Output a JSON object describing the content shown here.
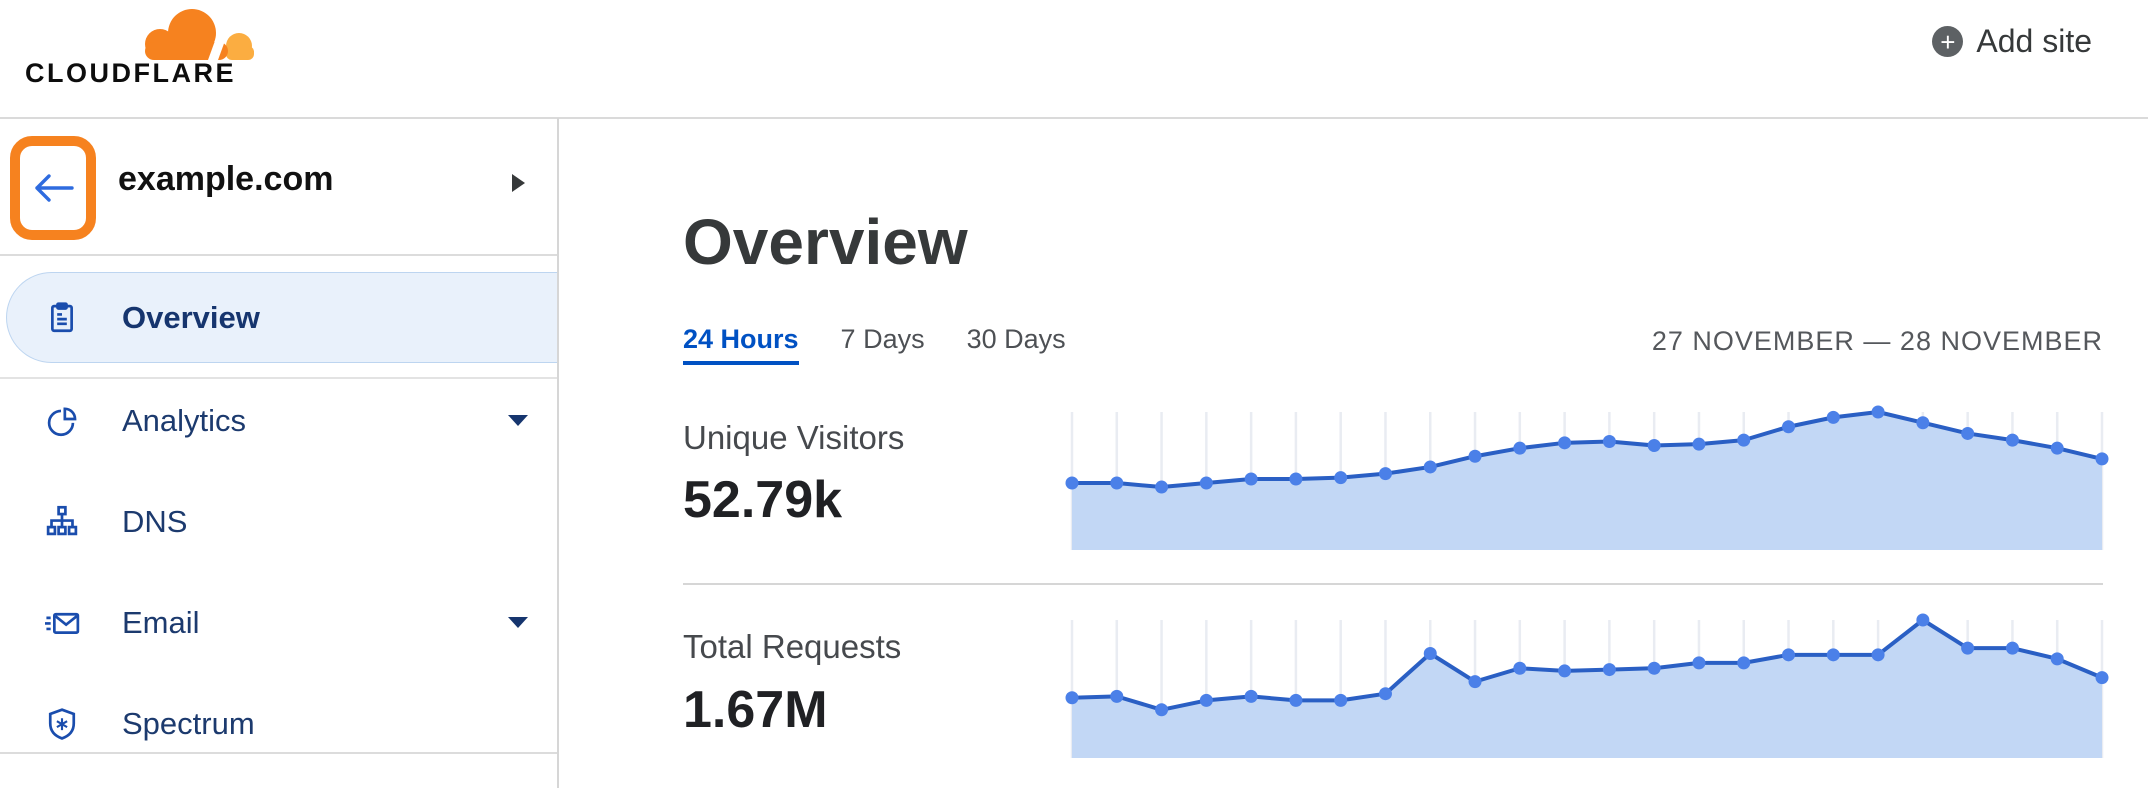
{
  "header": {
    "logo_text": "CLOUDFLARE",
    "add_site_label": "Add site"
  },
  "sidebar": {
    "site_name": "example.com",
    "items": [
      {
        "label": "Overview",
        "icon": "clipboard-icon",
        "selected": true,
        "has_submenu": false
      },
      {
        "label": "Analytics",
        "icon": "pie-chart-icon",
        "selected": false,
        "has_submenu": true
      },
      {
        "label": "DNS",
        "icon": "network-hierarchy-icon",
        "selected": false,
        "has_submenu": false
      },
      {
        "label": "Email",
        "icon": "envelope-icon",
        "selected": false,
        "has_submenu": true
      },
      {
        "label": "Spectrum",
        "icon": "shield-icon",
        "selected": false,
        "has_submenu": false
      }
    ],
    "annotation": {
      "type": "highlight-box",
      "color": "#f6821f",
      "target": "back-button"
    }
  },
  "main": {
    "title": "Overview",
    "tabs": [
      {
        "label": "24 Hours",
        "active": true
      },
      {
        "label": "7 Days",
        "active": false
      },
      {
        "label": "30 Days",
        "active": false
      }
    ],
    "date_range": "27 NOVEMBER — 28 NOVEMBER",
    "metrics": [
      {
        "label": "Unique Visitors",
        "value": "52.79k"
      },
      {
        "label": "Total Requests",
        "value": "1.67M"
      }
    ]
  },
  "colors": {
    "brand_orange": "#f6821f",
    "brand_orange_light": "#fbad41",
    "link_blue": "#0051c3",
    "nav_text": "#1c3a6e",
    "nav_icon_blue": "#1a4dad",
    "selected_pill_bg": "#e9f1fb",
    "selected_pill_border": "#bdd5f0",
    "chart_line": "#2a5fc4",
    "chart_dot": "#4b80e8",
    "chart_fill": "#c2d7f5",
    "chart_gridline": "#e9ecf2",
    "divider": "#d9d9d9",
    "text_dark": "#36393a",
    "text_gray": "#55585c"
  },
  "chart_data": [
    {
      "type": "area",
      "title": "Unique Visitors",
      "summary_value": "52.79k",
      "x_axis": "hourly points across 24 Hours view, 27–28 November (no tick labels shown)",
      "y_axis": "unlabeled; values below are relative heights as % of chart maximum",
      "grid": "vertical gridlines at each point",
      "legend_shown": false,
      "values": [
        47,
        47,
        44,
        47,
        50,
        50,
        51,
        54,
        59,
        67,
        73,
        77,
        78,
        75,
        76,
        79,
        89,
        96,
        100,
        92,
        84,
        79,
        73,
        65
      ]
    },
    {
      "type": "area",
      "title": "Total Requests",
      "summary_value": "1.67M",
      "x_axis": "hourly points across 24 Hours view, 27–28 November (no tick labels shown)",
      "y_axis": "unlabeled; values below are relative heights as % of chart maximum",
      "grid": "vertical gridlines at each point",
      "legend_shown": false,
      "values": [
        42,
        43,
        33,
        40,
        43,
        40,
        40,
        45,
        75,
        54,
        64,
        62,
        63,
        64,
        68,
        68,
        74,
        74,
        74,
        100,
        79,
        79,
        71,
        57
      ]
    }
  ]
}
